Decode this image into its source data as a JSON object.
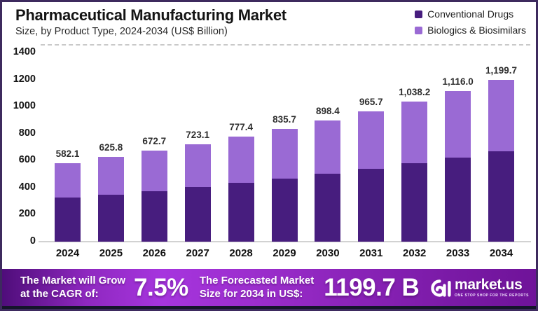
{
  "header": {
    "title": "Pharmaceutical Manufacturing Market",
    "subtitle": "Size, by Product Type, 2024-2034 (US$ Billion)"
  },
  "chart_data": {
    "type": "bar",
    "stacked": true,
    "title": "Pharmaceutical Manufacturing Market",
    "subtitle": "Size, by Product Type, 2024-2034 (US$ Billion)",
    "unit": "US$ Billion",
    "categories": [
      "2024",
      "2025",
      "2026",
      "2027",
      "2028",
      "2029",
      "2030",
      "2031",
      "2032",
      "2033",
      "2034"
    ],
    "series": [
      {
        "name": "Conventional Drugs",
        "color": "#471D7E",
        "values": [
          325.0,
          349.4,
          375.6,
          403.8,
          434.1,
          466.6,
          501.6,
          539.2,
          579.7,
          623.1,
          669.9
        ]
      },
      {
        "name": "Biologics & Biosimilars",
        "color": "#9A6AD4",
        "values": [
          257.1,
          276.4,
          297.1,
          319.3,
          343.3,
          369.1,
          396.8,
          426.5,
          458.5,
          492.9,
          529.8
        ]
      }
    ],
    "totals": [
      582.1,
      625.8,
      672.7,
      723.1,
      777.4,
      835.7,
      898.4,
      965.7,
      1038.2,
      1116.0,
      1199.7
    ],
    "total_labels": [
      "582.1",
      "625.8",
      "672.7",
      "723.1",
      "777.4",
      "835.7",
      "898.4",
      "965.7",
      "1,038.2",
      "1,116.0",
      "1,199.7"
    ],
    "ylim": [
      0,
      1400
    ],
    "yticks": [
      0,
      200,
      400,
      600,
      800,
      1000,
      1200,
      1400
    ],
    "grid": "dashed line at top only, solid baseline at 0",
    "legend_position": "top-right"
  },
  "banner": {
    "cagr_label": [
      "The Market will Grow",
      "at the CAGR of:"
    ],
    "cagr_value": "7.5%",
    "forecast_label": [
      "The Forecasted Market",
      "Size for 2034 in US$:"
    ],
    "forecast_value": "1199.7 B",
    "logo_text": "market.us",
    "logo_tagline": "ONE STOP SHOP FOR THE REPORTS"
  },
  "colors": {
    "conventional_drugs": "#471D7E",
    "biologics_biosimilars": "#9A6AD4",
    "frame_border": "#3D2A5E",
    "banner_gradient_start": "#4F0D7A",
    "banner_gradient_mid": "#A635DE",
    "banner_gradient_end": "#6F1399",
    "bottom_strip": "#15152B"
  }
}
